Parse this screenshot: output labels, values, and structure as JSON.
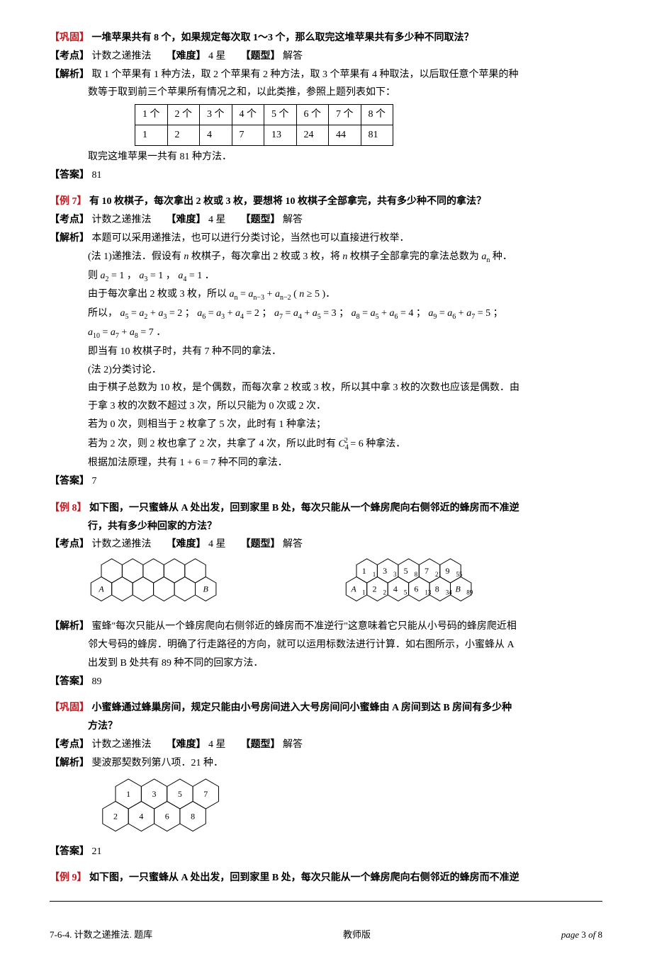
{
  "q1": {
    "tag": "【巩固】",
    "title": "一堆苹果共有 8 个，如果规定每次取 1～3 个，那么取完这堆苹果共有多少种不同取法？",
    "kaodian_tag": "【考点】",
    "kaodian": "计数之递推法",
    "nandu_tag": "【难度】",
    "nandu": "4 星",
    "tixing_tag": "【题型】",
    "tixing": "解答",
    "jiexi_tag": "【解析】",
    "jiexi_l1": "取 1 个苹果有 1 种方法，取 2 个苹果有 2 种方法，取 3 个苹果有 4 种取法，以后取任意个苹果的种",
    "jiexi_l2": "数等于取到前三个苹果所有情况之和，以此类推，参照上题列表如下：",
    "table_head": [
      "1 个",
      "2 个",
      "3 个",
      "4 个",
      "5 个",
      "6 个",
      "7 个",
      "8 个"
    ],
    "table_row": [
      "1",
      "2",
      "4",
      "7",
      "13",
      "24",
      "44",
      "81"
    ],
    "jiexi_l3": "取完这堆苹果一共有 81 种方法．",
    "daan_tag": "【答案】",
    "daan": "81"
  },
  "q2": {
    "tag": "【例 7】",
    "title": "有 10 枚棋子，每次拿出 2 枚或 3 枚，要想将 10 枚棋子全部拿完，共有多少种不同的拿法？",
    "kaodian_tag": "【考点】",
    "kaodian": "计数之递推法",
    "nandu_tag": "【难度】",
    "nandu": "4 星",
    "tixing_tag": "【题型】",
    "tixing": "解答",
    "jiexi_tag": "【解析】",
    "j1": "本题可以采用递推法，也可以进行分类讨论，当然也可以直接进行枚举．",
    "j2a": "(法 1)递推法．假设有 ",
    "j2n": "n",
    "j2b": " 枚棋子，每次拿出 2 枚或 3 枚，将 ",
    "j2c": " 枚棋子全部拿完的拿法总数为 ",
    "j2an": "aₙ",
    "j2d": " 种．",
    "j3": "则 a₂ = 1 ， a₃ = 1 ， a₄ = 1 ．",
    "j4": "由于每次拿出 2 枚或 3 枚，所以 aₙ = aₙ₋₃ + aₙ₋₂ ( n ≥ 5 )．",
    "j5": "所以， a₅ = a₂ + a₃ = 2 ； a₆ = a₃ + a₄ = 2 ； a₇ = a₄ + a₅ = 3 ； a₈ = a₅ + a₆ = 4 ； a₉ = a₆ + a₇ = 5 ；",
    "j6": "a₁₀ = a₇ + a₈ = 7 ．",
    "j7": "即当有 10 枚棋子时，共有 7 种不同的拿法．",
    "j8": "(法 2)分类讨论．",
    "j9": "由于棋子总数为 10 枚，是个偶数，而每次拿 2 枚或 3 枚，所以其中拿 3 枚的次数也应该是偶数．由",
    "j10": "于拿 3 枚的次数不超过 3 次，所以只能为 0 次或 2 次．",
    "j11": "若为 0 次，则相当于 2 枚拿了 5 次，此时有 1 种拿法；",
    "j12": "若为 2 次，则 2 枚也拿了 2 次，共拿了 4 次，所以此时有 C₄² = 6 种拿法．",
    "j13": "根据加法原理，共有 1 + 6 = 7 种不同的拿法．",
    "daan_tag": "【答案】",
    "daan": "7"
  },
  "q3": {
    "tag": "【例 8】",
    "title1": "如下图，一只蜜蜂从 A 处出发，回到家里 B 处，每次只能从一个蜂房爬向右侧邻近的蜂房而不准逆",
    "title2": "行，共有多少种回家的方法？",
    "kaodian_tag": "【考点】",
    "kaodian": "计数之递推法",
    "nandu_tag": "【难度】",
    "nandu": "4 星",
    "tixing_tag": "【题型】",
    "tixing": "解答",
    "labels_left": {
      "A": "A",
      "B": "B"
    },
    "labels_right": {
      "top": [
        [
          "1",
          "1"
        ],
        [
          "3",
          "3"
        ],
        [
          "5",
          "8"
        ],
        [
          "7",
          "21"
        ],
        [
          "9",
          "55"
        ]
      ],
      "bot": [
        [
          "A",
          "1"
        ],
        [
          "2",
          "2"
        ],
        [
          "4",
          "5"
        ],
        [
          "6",
          "13"
        ],
        [
          "8",
          "34"
        ],
        [
          "B",
          "89"
        ]
      ]
    },
    "jiexi_tag": "【解析】",
    "j1": "蜜蜂\"每次只能从一个蜂房爬向右侧邻近的蜂房而不准逆行\"这意味着它只能从小号码的蜂房爬近相",
    "j2": "邻大号码的蜂房．明确了行走路径的方向，就可以运用标数法进行计算．如右图所示，小蜜蜂从 A",
    "j3": "出发到 B 处共有 89 种不同的回家方法．",
    "daan_tag": "【答案】",
    "daan": "89"
  },
  "q4": {
    "tag": "【巩固】",
    "title1": "小蜜蜂通过蜂巢房间，规定只能由小号房间进入大号房间问小蜜蜂由 A 房间到达 B  房间有多少种",
    "title2": "方法？",
    "kaodian_tag": "【考点】",
    "kaodian": "计数之递推法",
    "nandu_tag": "【难度】",
    "nandu": "4 星",
    "tixing_tag": "【题型】",
    "tixing": "解答",
    "jiexi_tag": "【解析】",
    "j1": "斐波那契数列第八项．21 种．",
    "labels": {
      "top": [
        "1",
        "3",
        "5",
        "7"
      ],
      "bot": [
        "2",
        "4",
        "6",
        "8"
      ]
    },
    "daan_tag": "【答案】",
    "daan": "21"
  },
  "q5": {
    "tag": "【例 9】",
    "title": "如下图，一只蜜蜂从 A 处出发，回到家里 B 处，每次只能从一个蜂房爬向右侧邻近的蜂房而不准逆"
  },
  "footer": {
    "left": "7-6-4. 计数之递推法. 题库",
    "mid": "教师版",
    "right_a": "page",
    "right_b": "3",
    "right_c": "of",
    "right_d": "8"
  },
  "style": {
    "red": "#c11920",
    "black": "#000000",
    "hex_stroke": "#000000",
    "hex_stroke_w": 1
  }
}
